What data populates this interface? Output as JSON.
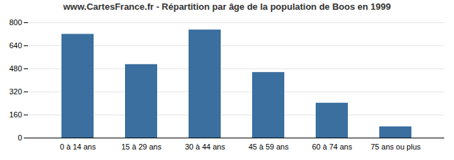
{
  "chart_data": {
    "type": "bar",
    "title": "www.CartesFrance.fr - Répartition par âge de la population de Boos en 1999",
    "categories": [
      "0 à 14 ans",
      "15 à 29 ans",
      "30 à 44 ans",
      "45 à 59 ans",
      "60 à 74 ans",
      "75 ans ou plus"
    ],
    "values": [
      720,
      510,
      750,
      455,
      242,
      78
    ],
    "color": "#3a6f9f",
    "ylim": [
      0,
      800
    ],
    "yticks": [
      0,
      160,
      320,
      480,
      640,
      800
    ],
    "grid": true
  }
}
